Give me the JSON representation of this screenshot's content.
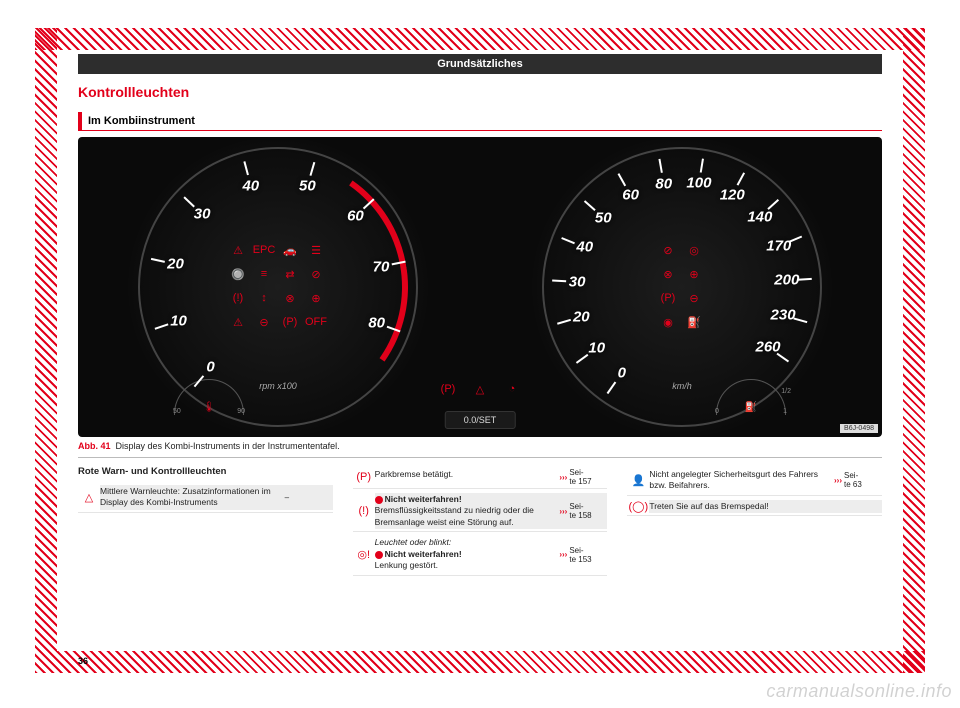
{
  "band_title": "Grundsätzliches",
  "section_title": "Kontrollleuchten",
  "subsection_title": "Im Kombiinstrument",
  "page_number": "36",
  "watermark": "carmanualsonline.info",
  "figure": {
    "abb": "Abb. 41",
    "caption": "Display des Kombi-Instruments in der Instrumententafel.",
    "code": "B6J-0498",
    "center_button": "0.0/SET",
    "left_gauge": {
      "numbers": [
        "0",
        "10",
        "20",
        "30",
        "40",
        "50",
        "60",
        "70",
        "80"
      ],
      "unit": "rpm x100",
      "mini_low": "50",
      "mini_high": "90",
      "mini_icon": "🌡",
      "redzone_color": "#e2001a",
      "center_icons": [
        "⚠",
        "EPC",
        "🚗",
        "☰",
        "🔘",
        "≡",
        "⇄",
        "⊘",
        "(!)",
        "↕",
        "⊗",
        "⊕",
        "⚠",
        "⊖",
        "(P)",
        "OFF"
      ]
    },
    "right_gauge": {
      "numbers": [
        "0",
        "10",
        "20",
        "30",
        "40",
        "50",
        "60",
        "80",
        "100",
        "120",
        "140",
        "170",
        "200",
        "230",
        "260"
      ],
      "unit": "km/h",
      "mini_low": "0",
      "mini_mid": "1/2",
      "mini_high": "1",
      "mini_icon": "⛽",
      "center_icons": [
        "⊘",
        "◎",
        "⊗",
        "⊕",
        "(P)",
        "⊖",
        "◉",
        "⛽"
      ]
    },
    "center_warn_icons": [
      "(P)",
      "△",
      "◔"
    ]
  },
  "table_heading": "Rote Warn- und Kontrollleuchten",
  "col1": [
    {
      "icon": "△",
      "text": "Mittlere Warnleuchte: Zusatzinformationen im Display des Kombi-Instruments",
      "ref": "–",
      "grey": true
    }
  ],
  "col2": [
    {
      "icon": "(P)",
      "text": "Parkbremse betätigt.",
      "ref": "Seite 157",
      "grey": false
    },
    {
      "icon": "(!)",
      "text": "<span class='reddot'></span><span class='nw'>Nicht weiterfahren!</span><br>Bremsflüssigkeitsstand zu niedrig oder die Bremsanlage weist eine Störung auf.",
      "ref": "Seite 158",
      "grey": true
    },
    {
      "icon": "◎!",
      "text": "<i>Leuchtet oder blinkt:</i><br><span class='reddot'></span><span class='nw'>Nicht weiterfahren!</span><br>Lenkung gestört.",
      "ref": "Seite 153",
      "grey": false
    }
  ],
  "col3": [
    {
      "icon": "👤",
      "text": "Nicht angelegter Sicherheitsgurt des Fahrers bzw. Beifahrers.",
      "ref": "Seite 63",
      "grey": false
    },
    {
      "icon": "(◯)",
      "text": "Treten Sie auf das Bremspedal!",
      "ref": "",
      "grey": true
    }
  ]
}
